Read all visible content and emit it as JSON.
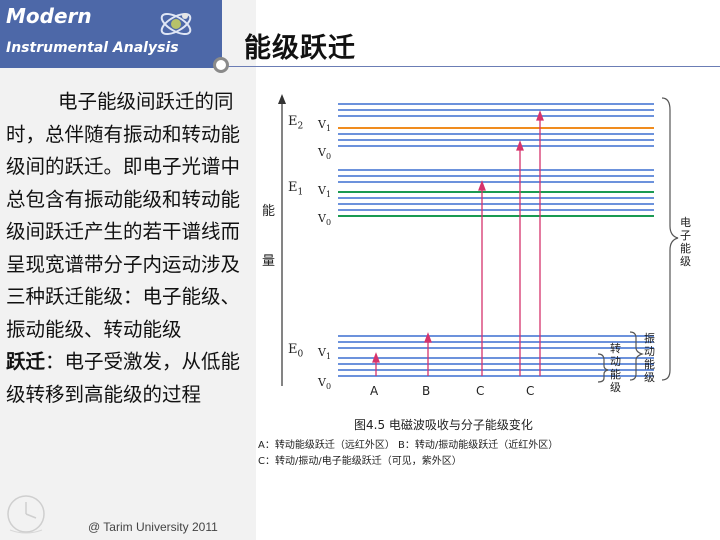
{
  "header": {
    "brand_line1": "Modern",
    "brand_line2": "Instrumental Analysis",
    "title": "能级跃迁"
  },
  "body": {
    "first_paragraph": "电子能级间跃迁的同时，总伴随有振动和转动能级间的跃迁。即电子光谱中总包含有振动能级和转动能级间跃迁产生的若干谱线而呈现宽谱带分子内运动涉及三种跃迁能级：电子能级、振动能级、转动能级",
    "term": "跃迁",
    "definition": "：电子受激发，从低能级转移到高能级的过程"
  },
  "footer": {
    "credit": "@ Tarim University 2011"
  },
  "diagram": {
    "axis_label_top": "能",
    "axis_label_bottom": "量",
    "levels": {
      "e2": "E",
      "e2_sub": "2",
      "e1": "E",
      "e1_sub": "1",
      "e0": "E",
      "e0_sub": "0",
      "v1": "V",
      "v1_sub": "1",
      "v0": "V",
      "v0_sub": "0"
    },
    "transitions": [
      "A",
      "B",
      "C",
      "C"
    ],
    "right_labels": {
      "electronic": "电子能级",
      "vibrational": "振动能级",
      "rotational": "转动能级"
    },
    "figure_title": "图4.5   电磁波吸收与分子能级变化",
    "legend_line1": "A：转动能级跃迁（远红外区）   B：转动/振动能级跃迁（近红外区）",
    "legend_line2": "C：转动/振动/电子能级跃迁（可见，紫外区）",
    "colors": {
      "blue": "#3b6fd0",
      "orange": "#f08c1e",
      "green": "#1b9a52",
      "magenta": "#d6336c"
    }
  }
}
